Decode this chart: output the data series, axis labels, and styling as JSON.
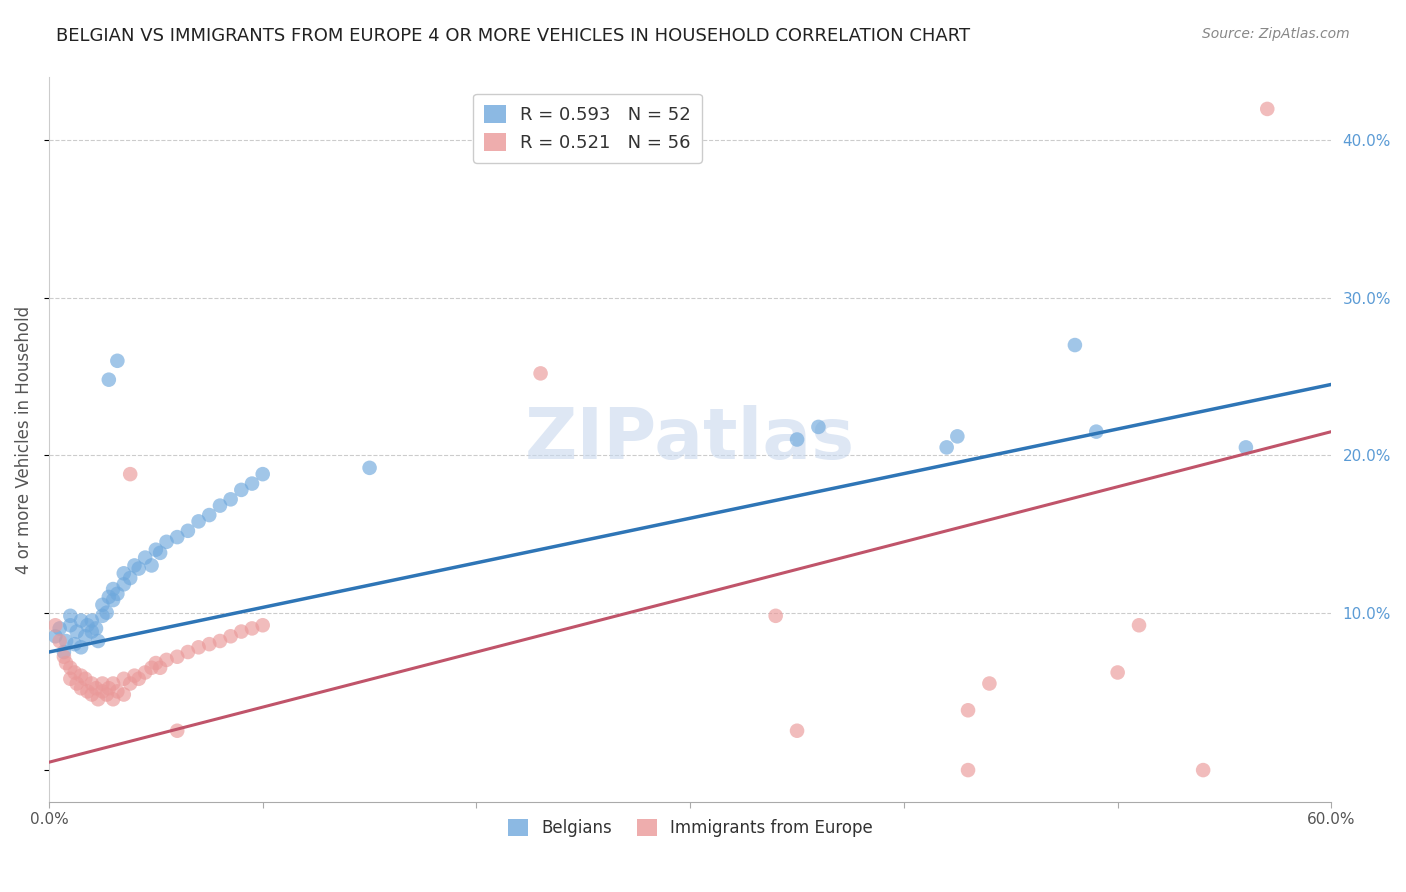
{
  "title": "BELGIAN VS IMMIGRANTS FROM EUROPE 4 OR MORE VEHICLES IN HOUSEHOLD CORRELATION CHART",
  "source": "Source: ZipAtlas.com",
  "ylabel": "4 or more Vehicles in Household",
  "xlim": [
    0.0,
    0.6
  ],
  "ylim": [
    -0.02,
    0.44
  ],
  "x_ticks": [
    0.0,
    0.1,
    0.2,
    0.3,
    0.4,
    0.5,
    0.6
  ],
  "x_tick_labels": [
    "0.0%",
    "",
    "",
    "",
    "",
    "",
    "60.0%"
  ],
  "y_ticks_right": [
    0.1,
    0.2,
    0.3,
    0.4
  ],
  "y_tick_labels_right": [
    "10.0%",
    "20.0%",
    "30.0%",
    "40.0%"
  ],
  "belgians_color": "#6fa8dc",
  "immigrants_color": "#ea9999",
  "trend_blue_color": "#2e75b6",
  "trend_pink_color": "#c0546a",
  "watermark": "ZIPatlas",
  "belgians_scatter": [
    [
      0.003,
      0.085
    ],
    [
      0.005,
      0.09
    ],
    [
      0.007,
      0.075
    ],
    [
      0.008,
      0.082
    ],
    [
      0.01,
      0.092
    ],
    [
      0.01,
      0.098
    ],
    [
      0.012,
      0.08
    ],
    [
      0.013,
      0.088
    ],
    [
      0.015,
      0.095
    ],
    [
      0.015,
      0.078
    ],
    [
      0.017,
      0.085
    ],
    [
      0.018,
      0.092
    ],
    [
      0.02,
      0.095
    ],
    [
      0.02,
      0.088
    ],
    [
      0.022,
      0.09
    ],
    [
      0.023,
      0.082
    ],
    [
      0.025,
      0.098
    ],
    [
      0.025,
      0.105
    ],
    [
      0.027,
      0.1
    ],
    [
      0.028,
      0.11
    ],
    [
      0.03,
      0.108
    ],
    [
      0.03,
      0.115
    ],
    [
      0.032,
      0.112
    ],
    [
      0.035,
      0.118
    ],
    [
      0.035,
      0.125
    ],
    [
      0.038,
      0.122
    ],
    [
      0.04,
      0.13
    ],
    [
      0.042,
      0.128
    ],
    [
      0.045,
      0.135
    ],
    [
      0.048,
      0.13
    ],
    [
      0.05,
      0.14
    ],
    [
      0.052,
      0.138
    ],
    [
      0.055,
      0.145
    ],
    [
      0.06,
      0.148
    ],
    [
      0.065,
      0.152
    ],
    [
      0.07,
      0.158
    ],
    [
      0.075,
      0.162
    ],
    [
      0.08,
      0.168
    ],
    [
      0.085,
      0.172
    ],
    [
      0.09,
      0.178
    ],
    [
      0.095,
      0.182
    ],
    [
      0.1,
      0.188
    ],
    [
      0.028,
      0.248
    ],
    [
      0.032,
      0.26
    ],
    [
      0.35,
      0.21
    ],
    [
      0.36,
      0.218
    ],
    [
      0.42,
      0.205
    ],
    [
      0.425,
      0.212
    ],
    [
      0.48,
      0.27
    ],
    [
      0.49,
      0.215
    ],
    [
      0.56,
      0.205
    ],
    [
      0.15,
      0.192
    ]
  ],
  "immigrants_scatter": [
    [
      0.003,
      0.092
    ],
    [
      0.005,
      0.082
    ],
    [
      0.007,
      0.072
    ],
    [
      0.008,
      0.068
    ],
    [
      0.01,
      0.065
    ],
    [
      0.01,
      0.058
    ],
    [
      0.012,
      0.062
    ],
    [
      0.013,
      0.055
    ],
    [
      0.015,
      0.06
    ],
    [
      0.015,
      0.052
    ],
    [
      0.017,
      0.058
    ],
    [
      0.018,
      0.05
    ],
    [
      0.02,
      0.055
    ],
    [
      0.02,
      0.048
    ],
    [
      0.022,
      0.052
    ],
    [
      0.023,
      0.045
    ],
    [
      0.025,
      0.05
    ],
    [
      0.025,
      0.055
    ],
    [
      0.027,
      0.048
    ],
    [
      0.028,
      0.052
    ],
    [
      0.03,
      0.055
    ],
    [
      0.03,
      0.045
    ],
    [
      0.032,
      0.05
    ],
    [
      0.035,
      0.058
    ],
    [
      0.035,
      0.048
    ],
    [
      0.038,
      0.055
    ],
    [
      0.04,
      0.06
    ],
    [
      0.042,
      0.058
    ],
    [
      0.045,
      0.062
    ],
    [
      0.048,
      0.065
    ],
    [
      0.05,
      0.068
    ],
    [
      0.052,
      0.065
    ],
    [
      0.055,
      0.07
    ],
    [
      0.06,
      0.072
    ],
    [
      0.065,
      0.075
    ],
    [
      0.07,
      0.078
    ],
    [
      0.075,
      0.08
    ],
    [
      0.08,
      0.082
    ],
    [
      0.085,
      0.085
    ],
    [
      0.09,
      0.088
    ],
    [
      0.095,
      0.09
    ],
    [
      0.1,
      0.092
    ],
    [
      0.038,
      0.188
    ],
    [
      0.23,
      0.252
    ],
    [
      0.34,
      0.098
    ],
    [
      0.35,
      0.025
    ],
    [
      0.43,
      0.038
    ],
    [
      0.44,
      0.055
    ],
    [
      0.5,
      0.062
    ],
    [
      0.51,
      0.092
    ],
    [
      0.54,
      0.0
    ],
    [
      0.57,
      0.42
    ],
    [
      0.06,
      0.025
    ],
    [
      0.43,
      0.0
    ]
  ],
  "blue_line": {
    "x0": 0.0,
    "y0": 0.075,
    "x1": 0.6,
    "y1": 0.245
  },
  "pink_line": {
    "x0": 0.0,
    "y0": 0.005,
    "x1": 0.6,
    "y1": 0.215
  },
  "background_color": "#ffffff",
  "grid_color": "#cccccc",
  "title_fontsize": 13,
  "axis_label_fontsize": 12,
  "tick_fontsize": 11,
  "watermark_fontsize": 52,
  "watermark_color": "#c8d8ee",
  "watermark_alpha": 0.6
}
